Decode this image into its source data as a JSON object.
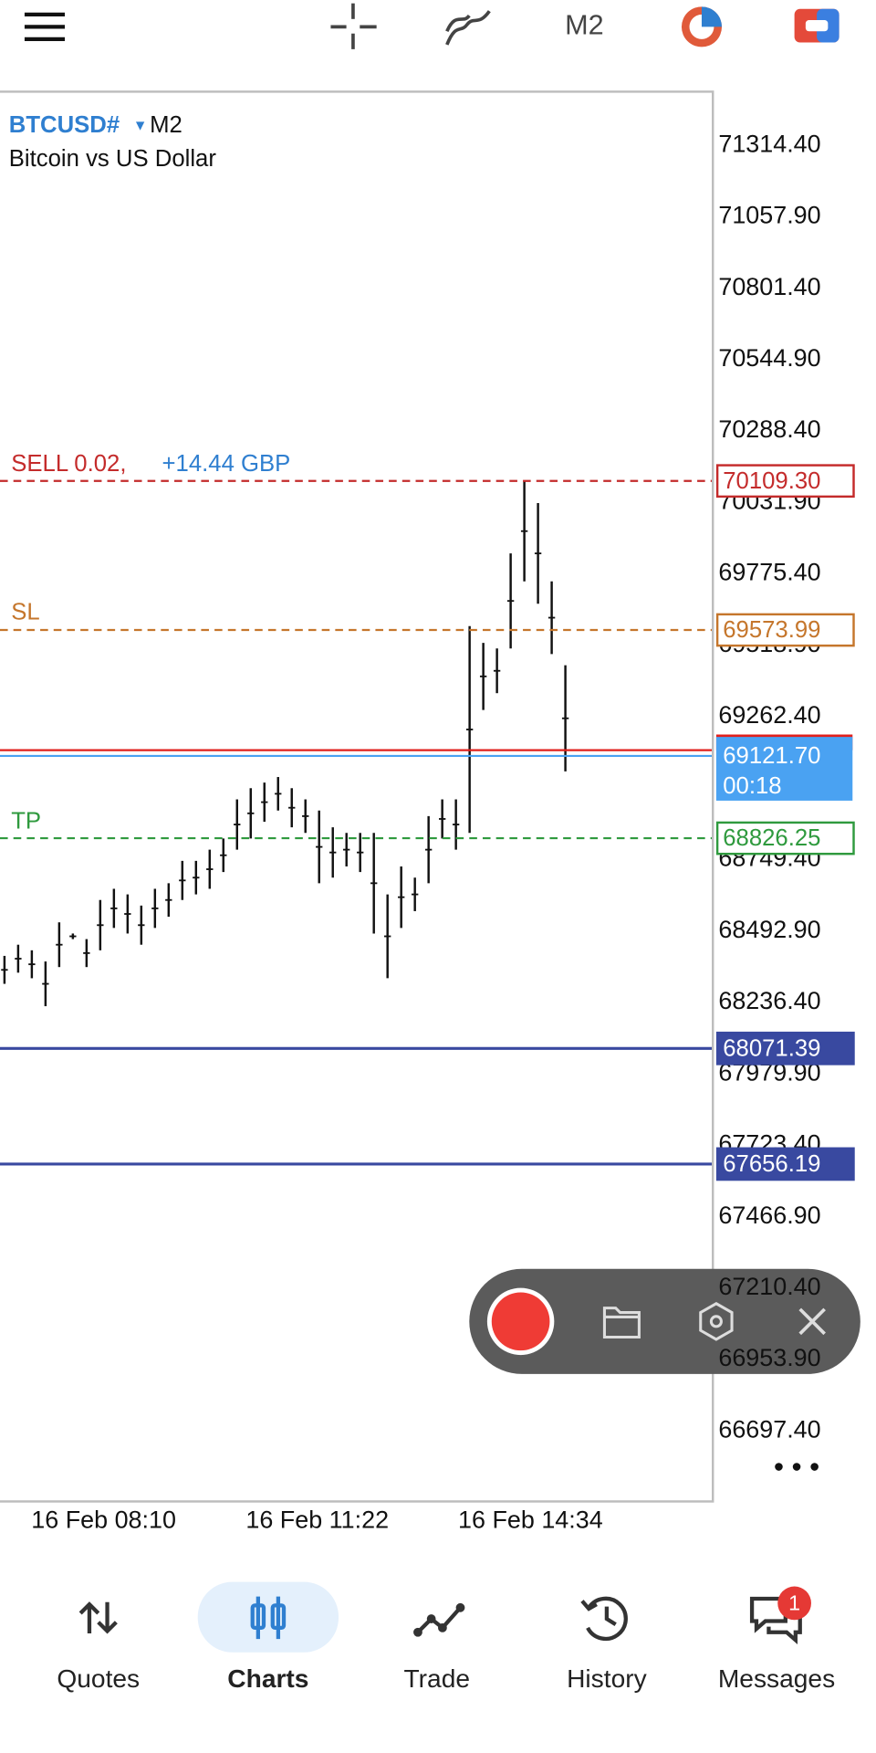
{
  "toolbar": {
    "timeframe": "M2"
  },
  "chart": {
    "symbol": "BTCUSD#",
    "timeframe": "M2",
    "description": "Bitcoin vs US Dollar",
    "ylim": [
      66444.5,
      71507.1
    ],
    "yticks": [
      {
        "value": 71314.4,
        "label": "71314.40"
      },
      {
        "value": 71057.9,
        "label": "71057.90"
      },
      {
        "value": 70801.4,
        "label": "70801.40"
      },
      {
        "value": 70544.9,
        "label": "70544.90"
      },
      {
        "value": 70288.4,
        "label": "70288.40"
      },
      {
        "value": 70031.9,
        "label": "70031.90"
      },
      {
        "value": 69775.4,
        "label": "69775.40"
      },
      {
        "value": 69518.9,
        "label": "69518.90"
      },
      {
        "value": 69262.4,
        "label": "69262.40"
      },
      {
        "value": 68749.4,
        "label": "68749.40"
      },
      {
        "value": 68492.9,
        "label": "68492.90"
      },
      {
        "value": 68236.4,
        "label": "68236.40"
      },
      {
        "value": 67979.9,
        "label": "67979.90"
      },
      {
        "value": 67723.4,
        "label": "67723.40"
      },
      {
        "value": 67466.9,
        "label": "67466.90"
      },
      {
        "value": 67210.4,
        "label": "67210.40"
      },
      {
        "value": 66953.9,
        "label": "66953.90"
      },
      {
        "value": 66697.4,
        "label": "66697.40"
      }
    ],
    "time_labels": [
      "16 Feb 08:10",
      "16 Feb 11:22",
      "16 Feb 14:34"
    ],
    "bars": {
      "color": "#111111",
      "highs": [
        68403.7,
        68443.8,
        68423.7,
        68383.6,
        68524.1,
        68484.0,
        68463.9,
        68604.4,
        68644.6,
        68624.5,
        68584.3,
        68644.6,
        68664.6,
        68744.9,
        68744.9,
        68785.1,
        68825.2,
        68965.7,
        69005.9,
        69026.0,
        69046.0,
        69005.9,
        68965.7,
        68925.6,
        68865.4,
        68845.3,
        68845.3,
        68845.3,
        68624.5,
        68724.9,
        68684.7,
        68905.5,
        68965.7,
        68965.7,
        69588.0,
        69527.8,
        69507.7,
        69849.0,
        70109.3,
        70029.7,
        69748.6,
        69447.5
      ],
      "lows": [
        68303.3,
        68343.4,
        68323.4,
        68223.0,
        68363.5,
        68463.9,
        68363.5,
        68423.7,
        68504.0,
        68484.0,
        68443.8,
        68504.0,
        68544.2,
        68604.4,
        68624.5,
        68644.6,
        68704.8,
        68785.1,
        68825.2,
        68885.4,
        68925.6,
        68865.4,
        68845.3,
        68664.6,
        68684.7,
        68724.9,
        68704.8,
        68484.0,
        68323.4,
        68504.0,
        68564.3,
        68664.6,
        68825.2,
        68785.1,
        68845.3,
        69286.9,
        69347.1,
        69507.7,
        69748.6,
        69668.3,
        69487.7,
        69066.1
      ]
    },
    "sell": {
      "label": "SELL 0.02,",
      "profit": "+14.44 GBP",
      "price": 70109.3,
      "price_label": "70109.30",
      "color": "#c42b2b",
      "profit_color": "#2f7fd0"
    },
    "sl": {
      "label": "SL",
      "price": 69573.99,
      "color": "#c5762c"
    },
    "tp": {
      "label": "TP",
      "price": 68826.25,
      "color": "#2f9a3e"
    },
    "ask": {
      "price": 69142.4,
      "color": "#e0201c"
    },
    "bid": {
      "price": 69121.7,
      "price_label": "69121.70",
      "countdown": "00:18",
      "color": "#4aa2f2"
    },
    "levels": [
      {
        "price": 68071.39,
        "color": "#3949a0"
      },
      {
        "price": 67656.19,
        "color": "#3949a0"
      }
    ]
  },
  "nav": {
    "items": [
      "Quotes",
      "Charts",
      "Trade",
      "History",
      "Messages"
    ],
    "active": 1,
    "active_color": "#2f7fd0",
    "badge": "1"
  }
}
